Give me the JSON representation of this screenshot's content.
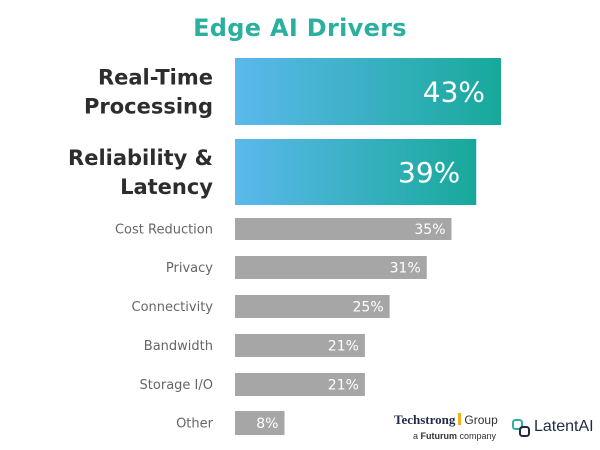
{
  "colors": {
    "title": "#2bb0a0",
    "highlight_start": "#5bb8ec",
    "highlight_end": "#17a99a",
    "gray_bar": "#a6a6a6",
    "highlight_label": "#2d2d2d",
    "gray_label": "#666666",
    "value_text": "#ffffff"
  },
  "chart_data": {
    "type": "bar",
    "orientation": "horizontal",
    "title": "Edge AI Drivers",
    "categories": [
      [
        "Real-Time",
        "Processing"
      ],
      [
        "Reliability &",
        "Latency"
      ],
      [
        "Cost Reduction"
      ],
      [
        "Privacy"
      ],
      [
        "Connectivity"
      ],
      [
        "Bandwidth"
      ],
      [
        "Storage I/O"
      ],
      [
        "Other"
      ]
    ],
    "values": [
      43,
      39,
      35,
      31,
      25,
      21,
      21,
      8
    ],
    "value_labels": [
      "43%",
      "39%",
      "35%",
      "31%",
      "25%",
      "21%",
      "21%",
      "8%"
    ],
    "highlighted": [
      true,
      true,
      false,
      false,
      false,
      false,
      false,
      false
    ],
    "xlim": [
      0,
      43
    ],
    "xlabel": "",
    "ylabel": ""
  },
  "logos": {
    "techstrong_brand": "Techstrong",
    "techstrong_group": "Group",
    "techstrong_sub_prefix": "a ",
    "techstrong_sub_brand": "Futurum",
    "techstrong_sub_suffix": " company",
    "latentai_name": "LatentAI",
    "latentai_icon": "latentai-logo-icon"
  }
}
